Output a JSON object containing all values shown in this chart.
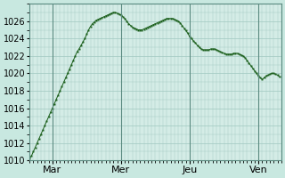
{
  "bg_color": "#c8e8e0",
  "plot_bg_color": "#d4ece6",
  "grid_color": "#a0c8c0",
  "line_color": "#1a5e1a",
  "marker_color": "#1a5e1a",
  "ylim": [
    1010,
    1028
  ],
  "yticks": [
    1010,
    1012,
    1014,
    1016,
    1018,
    1020,
    1022,
    1024,
    1026
  ],
  "ylabel_fontsize": 7,
  "xlabel_fontsize": 8,
  "day_labels": [
    "Mar",
    "Mer",
    "Jeu",
    "Ven"
  ],
  "day_positions": [
    24,
    96,
    168,
    240
  ],
  "x_values": [
    0,
    2,
    4,
    6,
    8,
    10,
    12,
    14,
    16,
    18,
    20,
    22,
    24,
    26,
    28,
    30,
    32,
    34,
    36,
    38,
    40,
    42,
    44,
    46,
    48,
    50,
    52,
    54,
    56,
    58,
    60,
    62,
    64,
    66,
    68,
    70,
    72,
    74,
    76,
    78,
    80,
    82,
    84,
    86,
    88,
    90,
    92,
    94,
    96,
    98,
    100,
    102,
    104,
    106,
    108,
    110,
    112,
    114,
    116,
    118,
    120,
    122,
    124,
    126,
    128,
    130,
    132,
    134,
    136,
    138,
    140,
    142,
    144,
    146,
    148,
    150,
    152,
    154,
    156,
    158,
    160,
    162,
    164,
    166,
    168,
    170,
    172,
    174,
    176,
    178,
    180,
    182,
    184,
    186,
    188,
    190,
    192,
    194,
    196,
    198,
    200,
    202,
    204,
    206,
    208,
    210,
    212,
    214,
    216,
    218,
    220,
    222,
    224,
    226,
    228,
    230,
    232,
    234,
    236,
    238,
    240,
    242,
    244,
    246,
    248,
    250,
    252,
    254,
    256,
    258,
    260,
    262
  ],
  "y_values": [
    1010.2,
    1010.5,
    1011.0,
    1011.5,
    1012.0,
    1012.5,
    1013.0,
    1013.5,
    1014.0,
    1014.5,
    1015.0,
    1015.5,
    1016.0,
    1016.5,
    1017.0,
    1017.5,
    1018.0,
    1018.5,
    1019.0,
    1019.5,
    1020.0,
    1020.5,
    1021.0,
    1021.5,
    1022.0,
    1022.5,
    1022.8,
    1023.2,
    1023.6,
    1024.0,
    1024.5,
    1025.0,
    1025.4,
    1025.7,
    1025.9,
    1026.1,
    1026.2,
    1026.3,
    1026.4,
    1026.5,
    1026.6,
    1026.7,
    1026.8,
    1026.9,
    1027.0,
    1027.0,
    1026.9,
    1026.8,
    1026.7,
    1026.5,
    1026.3,
    1026.0,
    1025.7,
    1025.5,
    1025.3,
    1025.2,
    1025.1,
    1025.0,
    1025.0,
    1025.0,
    1025.1,
    1025.2,
    1025.3,
    1025.4,
    1025.5,
    1025.6,
    1025.7,
    1025.8,
    1025.9,
    1026.0,
    1026.1,
    1026.2,
    1026.3,
    1026.3,
    1026.3,
    1026.3,
    1026.2,
    1026.1,
    1026.0,
    1025.8,
    1025.5,
    1025.2,
    1024.9,
    1024.6,
    1024.2,
    1024.0,
    1023.7,
    1023.5,
    1023.2,
    1023.0,
    1022.8,
    1022.7,
    1022.7,
    1022.7,
    1022.7,
    1022.8,
    1022.8,
    1022.8,
    1022.7,
    1022.6,
    1022.5,
    1022.4,
    1022.3,
    1022.2,
    1022.2,
    1022.2,
    1022.2,
    1022.3,
    1022.3,
    1022.3,
    1022.2,
    1022.1,
    1022.0,
    1021.8,
    1021.5,
    1021.2,
    1020.9,
    1020.6,
    1020.3,
    1020.0,
    1019.7,
    1019.5,
    1019.3,
    1019.5,
    1019.7,
    1019.8,
    1019.9,
    1020.0,
    1020.0,
    1019.9,
    1019.8,
    1019.6
  ]
}
